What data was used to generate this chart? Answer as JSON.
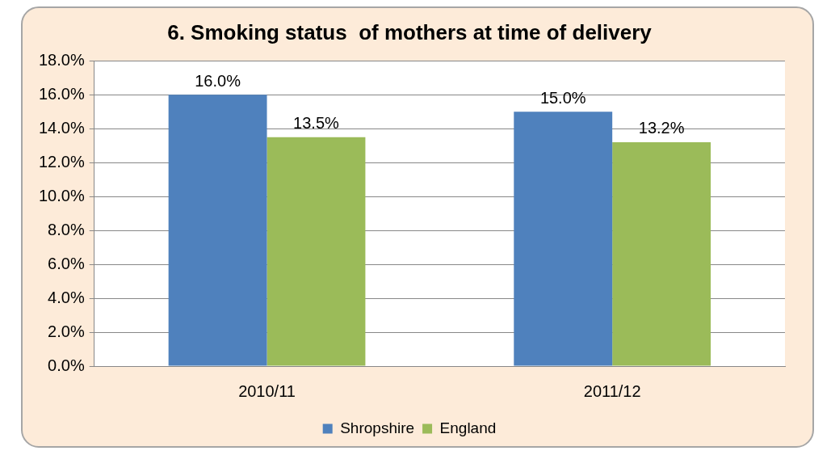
{
  "chart_data": {
    "type": "bar",
    "title": "6. Smoking status  of mothers at time of delivery",
    "categories": [
      "2010/11",
      "2011/12"
    ],
    "series": [
      {
        "name": "Shropshire",
        "color": "#4f81bd",
        "values": [
          16.0,
          15.0
        ],
        "value_labels": [
          "16.0%",
          "15.0%"
        ]
      },
      {
        "name": "England",
        "color": "#9bbb59",
        "values": [
          13.5,
          13.2
        ],
        "value_labels": [
          "13.5%",
          "13.2%"
        ]
      }
    ],
    "ylim": [
      0,
      18
    ],
    "yticks": [
      {
        "value": 0,
        "label": "0.0%"
      },
      {
        "value": 2,
        "label": "2.0%"
      },
      {
        "value": 4,
        "label": "4.0%"
      },
      {
        "value": 6,
        "label": "6.0%"
      },
      {
        "value": 8,
        "label": "8.0%"
      },
      {
        "value": 10,
        "label": "10.0%"
      },
      {
        "value": 12,
        "label": "12.0%"
      },
      {
        "value": 14,
        "label": "14.0%"
      },
      {
        "value": 16,
        "label": "16.0%"
      },
      {
        "value": 18,
        "label": "18.0%"
      }
    ],
    "grid": "y",
    "legend": "bottom"
  }
}
